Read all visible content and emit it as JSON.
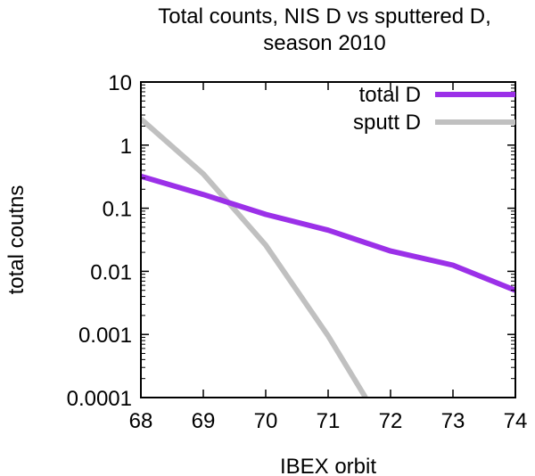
{
  "chart_data": {
    "type": "line",
    "title": "Total counts, NIS D vs sputtered D,",
    "subtitle": "season 2010",
    "xlabel": "IBEX orbit",
    "ylabel": "total coutns",
    "xlim": [
      68,
      74
    ],
    "ylim": [
      0.0001,
      10
    ],
    "yscale": "log",
    "x_ticks": [
      "68",
      "69",
      "70",
      "71",
      "72",
      "73",
      "74"
    ],
    "y_ticks": [
      "0.0001",
      "0.001",
      "0.01",
      "0.1",
      "1",
      "10"
    ],
    "legend_position": "top-right",
    "series": [
      {
        "name": "total D",
        "color": "#9b30e8",
        "x": [
          68,
          69,
          70,
          71,
          72,
          73,
          74
        ],
        "y": [
          0.32,
          0.165,
          0.08,
          0.045,
          0.021,
          0.0125,
          0.005
        ]
      },
      {
        "name": "sputt D",
        "color": "#c0c0c0",
        "x": [
          68,
          69,
          70,
          71,
          71.6
        ],
        "y": [
          2.6,
          0.35,
          0.026,
          0.00095,
          0.0001
        ]
      }
    ]
  }
}
